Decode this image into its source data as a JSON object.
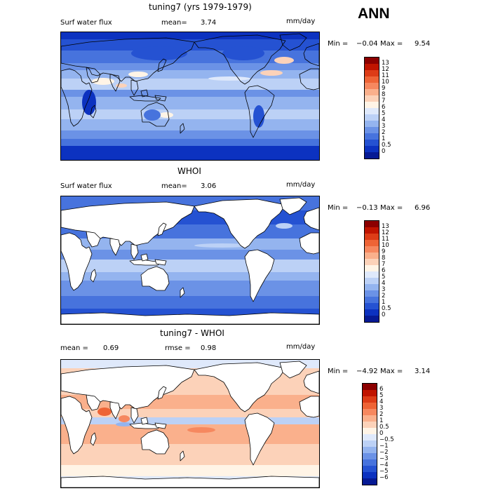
{
  "season": "ANN",
  "panels": [
    {
      "title": "tuning7 (yrs 1979-1979)",
      "left_label": "Surf water flux",
      "mean_label": "mean=",
      "mean_value": "3.74",
      "units": "mm/day",
      "min_label": "Min =",
      "min_value": "−0.04",
      "max_label": "Max =",
      "max_value": "9.54",
      "land_masked": false,
      "colorbar_labels": [
        "13",
        "12",
        "11",
        "10",
        "9",
        "8",
        "7",
        "6",
        "5",
        "4",
        "3",
        "2",
        "1",
        "0.5",
        "0"
      ],
      "colorbar_colors": [
        "#8c0000",
        "#c01400",
        "#dd3c17",
        "#ee6436",
        "#f6885f",
        "#fab08c",
        "#fcd2b9",
        "#fff4e6",
        "#dfe9fb",
        "#bcd1f6",
        "#94b4ef",
        "#6b92e6",
        "#4773dd",
        "#2552d2",
        "#0c32c0",
        "#061a94"
      ]
    },
    {
      "title": "WHOI",
      "left_label": "Surf water flux",
      "mean_label": "mean=",
      "mean_value": "3.06",
      "units": "mm/day",
      "min_label": "Min =",
      "min_value": "−0.13",
      "max_label": "Max =",
      "max_value": "6.96",
      "land_masked": true,
      "colorbar_labels": [
        "13",
        "12",
        "11",
        "10",
        "9",
        "8",
        "7",
        "6",
        "5",
        "4",
        "3",
        "2",
        "1",
        "0.5",
        "0"
      ],
      "colorbar_colors": [
        "#8c0000",
        "#c01400",
        "#dd3c17",
        "#ee6436",
        "#f6885f",
        "#fab08c",
        "#fcd2b9",
        "#fff4e6",
        "#dfe9fb",
        "#bcd1f6",
        "#94b4ef",
        "#6b92e6",
        "#4773dd",
        "#2552d2",
        "#0c32c0",
        "#061a94"
      ]
    },
    {
      "title": "tuning7 - WHOI",
      "left_label": "mean =",
      "left_value": "0.69",
      "mid_label": "rmse =",
      "mid_value": "0.98",
      "units": "mm/day",
      "min_label": "Min =",
      "min_value": "−4.92",
      "max_label": "Max =",
      "max_value": "3.14",
      "land_masked": true,
      "colorbar_labels": [
        "6",
        "5",
        "4",
        "3",
        "2",
        "1",
        "0.5",
        "0",
        "−0.5",
        "−1",
        "−2",
        "−3",
        "−4",
        "−5",
        "−6"
      ],
      "colorbar_colors": [
        "#8c0000",
        "#c01400",
        "#dd3c17",
        "#ee6436",
        "#f6885f",
        "#fab08c",
        "#fcd2b9",
        "#fff4e6",
        "#dfe9fb",
        "#bcd1f6",
        "#94b4ef",
        "#6b92e6",
        "#4773dd",
        "#2552d2",
        "#0c32c0",
        "#061a94"
      ]
    }
  ],
  "chart_data": [
    {
      "type": "heatmap",
      "title": "tuning7 (yrs 1979-1979)",
      "variable": "Surf water flux",
      "units": "mm/day",
      "mean": 3.74,
      "min": -0.04,
      "max": 9.54,
      "colorbar_levels": [
        0,
        0.5,
        1,
        2,
        3,
        4,
        5,
        6,
        7,
        8,
        9,
        10,
        11,
        12,
        13
      ]
    },
    {
      "type": "heatmap",
      "title": "WHOI",
      "variable": "Surf water flux",
      "units": "mm/day",
      "mean": 3.06,
      "min": -0.13,
      "max": 6.96,
      "colorbar_levels": [
        0,
        0.5,
        1,
        2,
        3,
        4,
        5,
        6,
        7,
        8,
        9,
        10,
        11,
        12,
        13
      ]
    },
    {
      "type": "heatmap",
      "title": "tuning7 - WHOI",
      "units": "mm/day",
      "mean": 0.69,
      "rmse": 0.98,
      "min": -4.92,
      "max": 3.14,
      "colorbar_levels": [
        -6,
        -5,
        -4,
        -3,
        -2,
        -1,
        -0.5,
        0,
        0.5,
        1,
        2,
        3,
        4,
        5,
        6
      ]
    }
  ]
}
